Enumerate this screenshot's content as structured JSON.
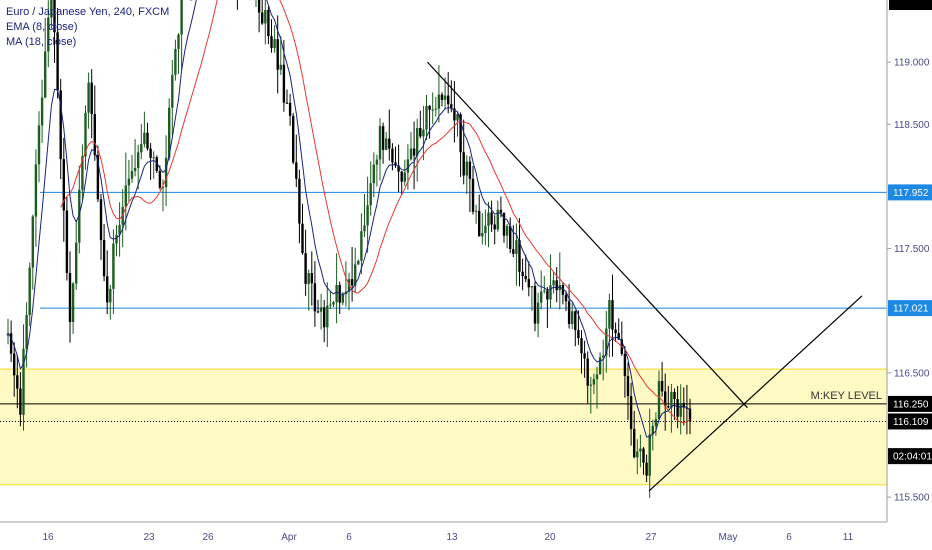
{
  "legend": {
    "symbol": "Euro / Japanese Yen, 240, FXCM",
    "ema": "EMA (8, close)",
    "ma": "MA (18, close)"
  },
  "colors": {
    "candle_up": "#1b5e20",
    "candle_down": "#000000",
    "ema": "#1a237e",
    "ma": "#e53935",
    "hline": "#1e88e5",
    "trendline": "#000000",
    "zone_fill": "#fff9c4",
    "zone_border": "#f5e04a",
    "label_blue": "#1e88e5",
    "label_black": "#000000"
  },
  "price_axis": {
    "ticks": [
      "119.000",
      "118.500",
      "117.500",
      "116.500",
      "115.500"
    ],
    "labels": [
      {
        "text": "117.952",
        "price": 117.952,
        "style": "blue"
      },
      {
        "text": "117.021",
        "price": 117.021,
        "style": "blue"
      },
      {
        "text": "116.250",
        "price": 116.25,
        "style": "black"
      },
      {
        "text": "116.109",
        "price": 116.109,
        "style": "black"
      },
      {
        "text": "02:04:01",
        "price": 115.83,
        "style": "black"
      }
    ]
  },
  "time_axis": {
    "ticks": [
      "16",
      "23",
      "26",
      "Apr",
      "6",
      "13",
      "20",
      "27",
      "May",
      "6",
      "11"
    ]
  },
  "annotations": {
    "key_level": "M:KEY LEVEL"
  },
  "chart_data": {
    "type": "candlestick",
    "title": "Euro / Japanese Yen, 240, FXCM",
    "ylim": [
      115.3,
      119.5
    ],
    "indicators": [
      "EMA (8, close)",
      "MA (18, close)"
    ],
    "horizontal_levels": [
      {
        "price": 117.952,
        "label": "117.952"
      },
      {
        "price": 117.021,
        "label": "117.021"
      },
      {
        "price": 116.25,
        "label": "116.250"
      }
    ],
    "zone": {
      "top": 116.53,
      "bottom": 115.6,
      "label": "M:KEY LEVEL"
    },
    "current_price": 116.109,
    "trendlines": [
      {
        "from": {
          "bar": 135.3,
          "price": 119.0
        },
        "to": {
          "bar": 238.5,
          "price": 116.22
        }
      },
      {
        "from": {
          "bar": 206.8,
          "price": 115.55
        },
        "to": {
          "bar": 275.5,
          "price": 117.12
        }
      }
    ],
    "key_prices": [
      {
        "bar": 0,
        "price": 116.8
      },
      {
        "bar": 4,
        "price": 116.2
      },
      {
        "bar": 10,
        "price": 118.5
      },
      {
        "bar": 14,
        "price": 119.6
      },
      {
        "bar": 20,
        "price": 117.0
      },
      {
        "bar": 26,
        "price": 118.8
      },
      {
        "bar": 32,
        "price": 117.1
      },
      {
        "bar": 38,
        "price": 118.0
      },
      {
        "bar": 44,
        "price": 118.4
      },
      {
        "bar": 50,
        "price": 118.0
      },
      {
        "bar": 56,
        "price": 119.6
      },
      {
        "bar": 66,
        "price": 120.0
      },
      {
        "bar": 80,
        "price": 119.6
      },
      {
        "bar": 90,
        "price": 118.7
      },
      {
        "bar": 96,
        "price": 117.3
      },
      {
        "bar": 102,
        "price": 116.85
      },
      {
        "bar": 108,
        "price": 117.2
      },
      {
        "bar": 114,
        "price": 117.5
      },
      {
        "bar": 120,
        "price": 118.35
      },
      {
        "bar": 126,
        "price": 118.1
      },
      {
        "bar": 132,
        "price": 118.4
      },
      {
        "bar": 138,
        "price": 118.6
      },
      {
        "bar": 144,
        "price": 118.65
      },
      {
        "bar": 148,
        "price": 118.1
      },
      {
        "bar": 152,
        "price": 117.65
      },
      {
        "bar": 158,
        "price": 117.8
      },
      {
        "bar": 164,
        "price": 117.45
      },
      {
        "bar": 170,
        "price": 117.0
      },
      {
        "bar": 176,
        "price": 117.2
      },
      {
        "bar": 182,
        "price": 116.95
      },
      {
        "bar": 188,
        "price": 116.3
      },
      {
        "bar": 194,
        "price": 117.0
      },
      {
        "bar": 198,
        "price": 116.6
      },
      {
        "bar": 202,
        "price": 115.85
      },
      {
        "bar": 206,
        "price": 115.75
      },
      {
        "bar": 210,
        "price": 116.35
      },
      {
        "bar": 214,
        "price": 116.25
      },
      {
        "bar": 218,
        "price": 116.15
      },
      {
        "bar": 220,
        "price": 116.11
      }
    ]
  }
}
